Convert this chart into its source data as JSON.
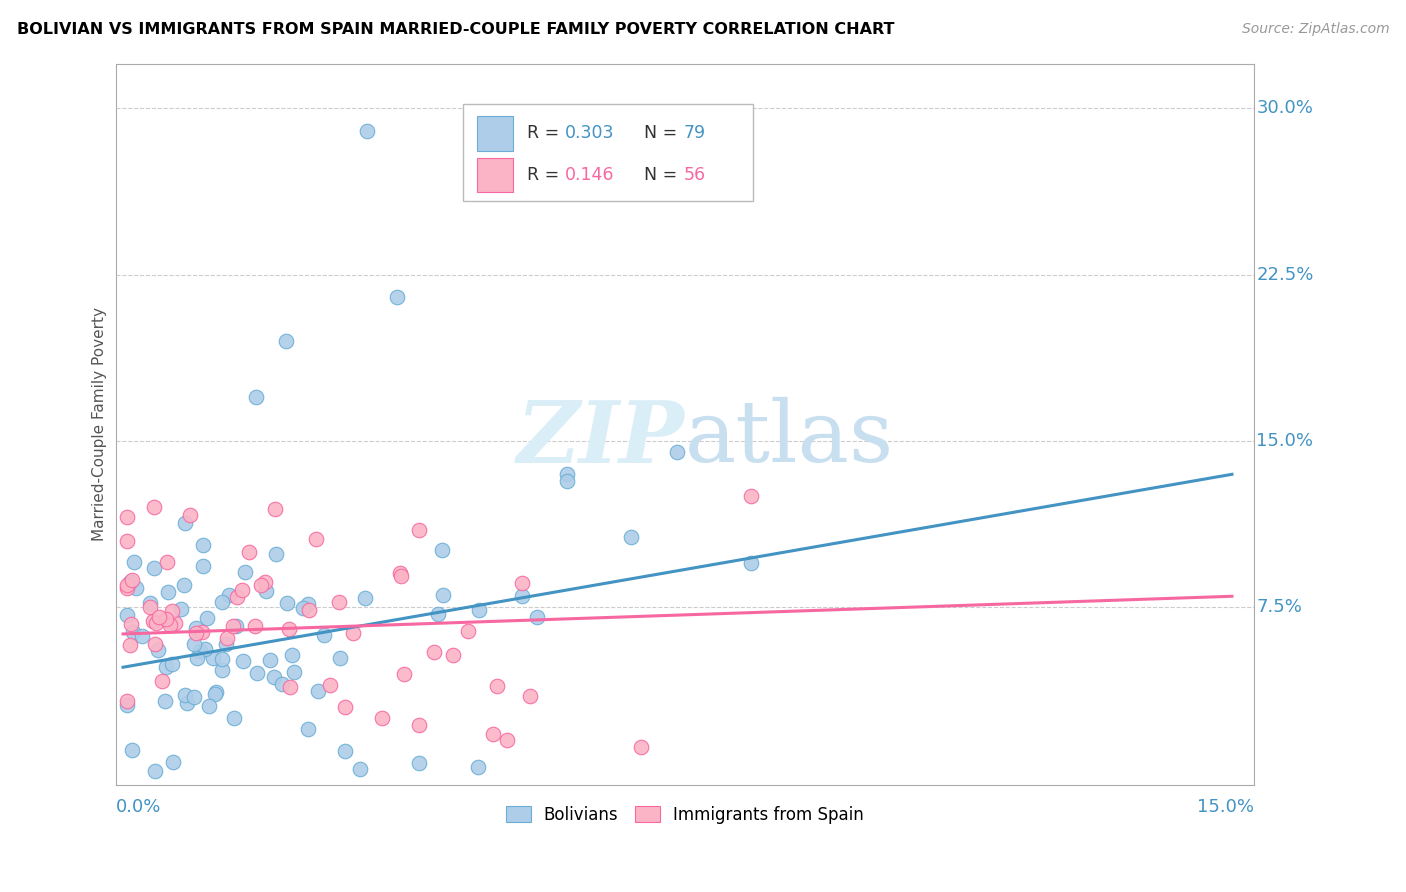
{
  "title": "BOLIVIAN VS IMMIGRANTS FROM SPAIN MARRIED-COUPLE FAMILY POVERTY CORRELATION CHART",
  "source": "Source: ZipAtlas.com",
  "ylabel": "Married-Couple Family Poverty",
  "ytick_labels": [
    "30.0%",
    "22.5%",
    "15.0%",
    "7.5%"
  ],
  "ytick_values": [
    0.3,
    0.225,
    0.15,
    0.075
  ],
  "xlim": [
    0.0,
    0.15
  ],
  "ylim": [
    0.0,
    0.32
  ],
  "color_blue_fill": "#aecde8",
  "color_blue_edge": "#6aaed6",
  "color_pink_fill": "#fbb4c6",
  "color_pink_edge": "#f768a1",
  "line_blue": "#4393c3",
  "line_pink": "#f768a1",
  "watermark_color": "#daeef8",
  "grid_color": "#cccccc",
  "tick_label_color": "#4393c3",
  "title_color": "#000000",
  "source_color": "#999999",
  "ylabel_color": "#555555",
  "blue_line_x0": 0.0,
  "blue_line_y0": 0.048,
  "blue_line_x1": 0.15,
  "blue_line_y1": 0.135,
  "pink_line_x0": 0.0,
  "pink_line_y0": 0.063,
  "pink_line_x1": 0.15,
  "pink_line_y1": 0.08
}
